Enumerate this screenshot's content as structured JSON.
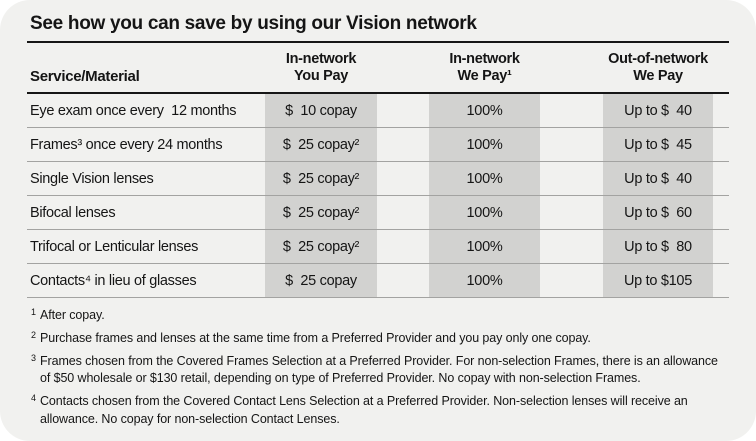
{
  "title": "See how you can save by using our Vision network",
  "colors": {
    "card_bg": "#f1f1ef",
    "band": "#d2d2d0",
    "rule_black": "#161616",
    "separator": "#a3a3a1",
    "text": "#151515"
  },
  "table": {
    "headers": {
      "service": "Service/Material",
      "you_pay_line1": "In-network",
      "you_pay_line2": "You Pay",
      "we_pay_line1": "In-network",
      "we_pay_line2": "We Pay¹",
      "oon_line1": "Out-of-network",
      "oon_line2": "We Pay"
    },
    "rows": [
      {
        "service": "Eye exam once every  12 months",
        "you_pay": "$  10 copay",
        "we_pay": "100%",
        "out_of_network": "Up to $  40"
      },
      {
        "service": "Frames³ once every 24 months",
        "you_pay": "$  25 copay²",
        "we_pay": "100%",
        "out_of_network": "Up to $  45"
      },
      {
        "service": "Single Vision lenses",
        "you_pay": "$  25 copay²",
        "we_pay": "100%",
        "out_of_network": "Up to $  40"
      },
      {
        "service": "Bifocal lenses",
        "you_pay": "$  25 copay²",
        "we_pay": "100%",
        "out_of_network": "Up to $  60"
      },
      {
        "service": "Trifocal or Lenticular lenses",
        "you_pay": "$  25 copay²",
        "we_pay": "100%",
        "out_of_network": "Up to $  80"
      },
      {
        "service": "Contacts⁴ in lieu of glasses",
        "you_pay": "$  25 copay",
        "we_pay": "100%",
        "out_of_network": "Up to $105"
      }
    ]
  },
  "footnotes": [
    {
      "marker": "1",
      "text": "After copay."
    },
    {
      "marker": "2",
      "text": "Purchase frames and lenses at the same time from a Preferred Provider and you pay only one copay."
    },
    {
      "marker": "3",
      "text": "Frames chosen from the Covered Frames Selection at a Preferred Provider. For non-selection Frames, there is an allowance of $50 wholesale or $130 retail, depending on type of Preferred Provider. No copay with non-selection Frames."
    },
    {
      "marker": "4",
      "text": "Contacts chosen from the Covered Contact Lens Selection at a Preferred Provider. Non-selection lenses will receive an allowance. No copay for non-selection Contact Lenses."
    }
  ]
}
